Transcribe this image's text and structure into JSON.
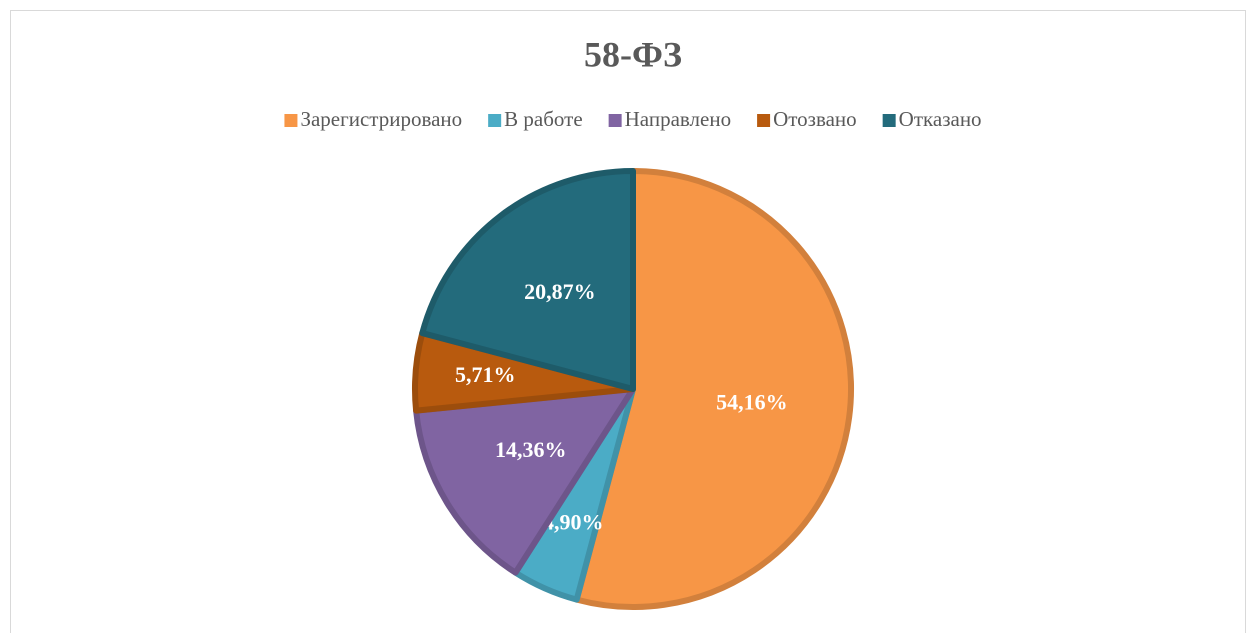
{
  "chart_data": {
    "type": "pie",
    "title": "58-ФЗ",
    "categories": [
      "Зарегистрировано",
      "В работе",
      "Направлено",
      "Отозвано",
      "Отказано"
    ],
    "values": [
      54.16,
      4.9,
      14.36,
      5.71,
      20.87
    ],
    "value_labels": [
      "54,16%",
      "4,90%",
      "14,36%",
      "5,71%",
      "20,87%"
    ],
    "colors": [
      "#f79646",
      "#4bacc6",
      "#8064a2",
      "#b85a0e",
      "#236b7c"
    ],
    "legend": "top"
  }
}
